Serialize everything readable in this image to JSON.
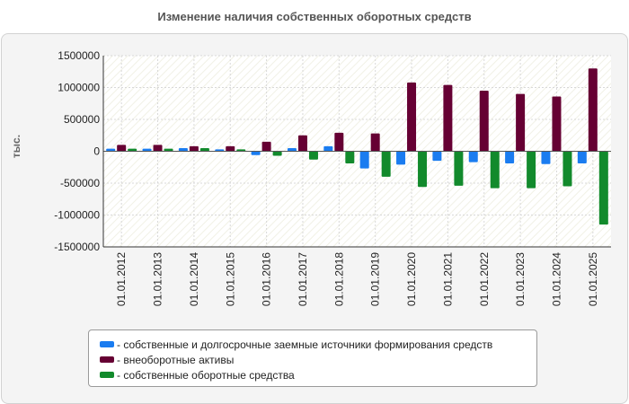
{
  "chart_data": {
    "type": "bar",
    "title": "Изменение наличия собственных оборотных средств",
    "ylabel": "тыс.",
    "xlabel": "",
    "ylim": [
      -1500000,
      1500000
    ],
    "yticks": [
      1500000,
      1000000,
      500000,
      0,
      -500000,
      -1000000,
      -1500000
    ],
    "ytick_labels": [
      "1500000",
      "1000000",
      "500000",
      "0",
      "-500000",
      "-1000000",
      "-1500000"
    ],
    "categories": [
      "01.01.2012",
      "01.01.2013",
      "01.01.2014",
      "01.01.2015",
      "01.01.2016",
      "01.01.2017",
      "01.01.2018",
      "01.01.2019",
      "01.01.2020",
      "01.01.2021",
      "01.01.2022",
      "01.01.2023",
      "01.01.2024",
      "01.01.2025"
    ],
    "series": [
      {
        "name": "- собственные и долгосрочные заемные источники формирования средств",
        "color": "#1a7cf0",
        "values": [
          40000,
          40000,
          50000,
          30000,
          -60000,
          50000,
          80000,
          -270000,
          -210000,
          -150000,
          -170000,
          -190000,
          -200000,
          -190000
        ]
      },
      {
        "name": "- внеоборотные активы",
        "color": "#660033",
        "values": [
          100000,
          100000,
          80000,
          80000,
          150000,
          250000,
          290000,
          280000,
          1080000,
          1040000,
          950000,
          900000,
          860000,
          1300000
        ]
      },
      {
        "name": "- собственные оборотные средства",
        "color": "#128a2c",
        "values": [
          40000,
          40000,
          50000,
          30000,
          -70000,
          -130000,
          -190000,
          -400000,
          -560000,
          -540000,
          -580000,
          -580000,
          -550000,
          -1150000
        ]
      }
    ],
    "grid": true,
    "legend_position": "bottom"
  }
}
